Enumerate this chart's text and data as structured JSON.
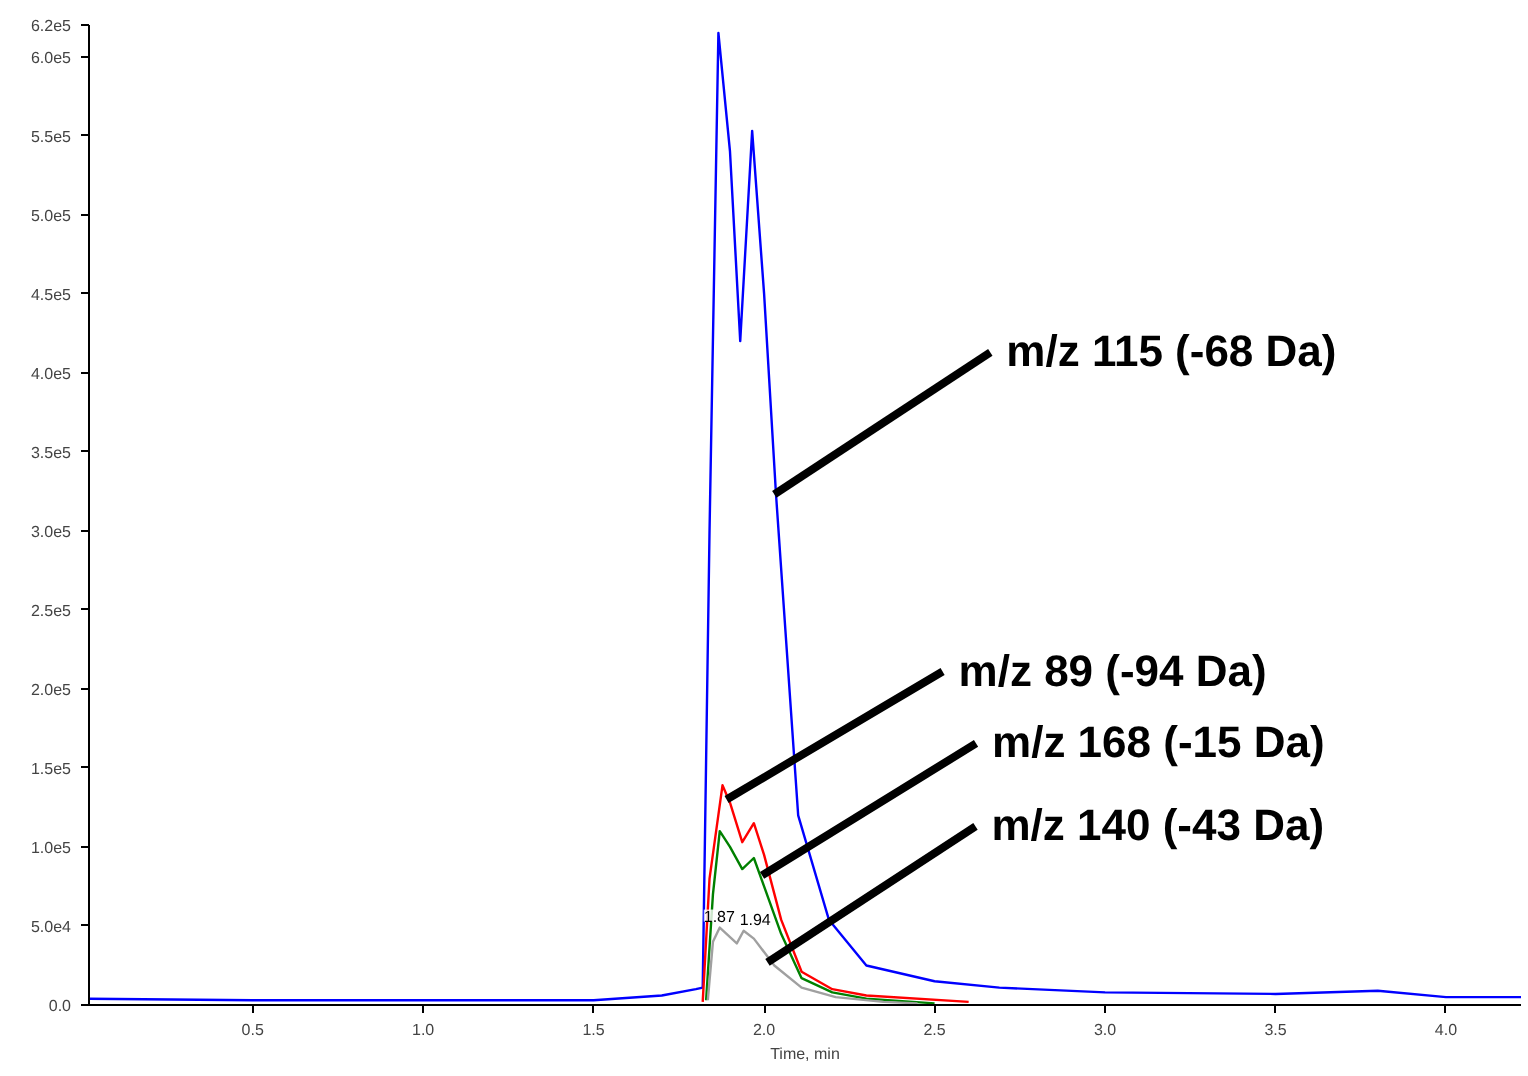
{
  "chart_data": {
    "type": "line",
    "xlabel": "Time, min",
    "xlim": [
      0.02,
      4.22
    ],
    "ylim": [
      0,
      620000
    ],
    "xticks": [
      {
        "value": 0.5,
        "label": "0.5"
      },
      {
        "value": 1.0,
        "label": "1.0"
      },
      {
        "value": 1.5,
        "label": "1.5"
      },
      {
        "value": 2.0,
        "label": "2.0"
      },
      {
        "value": 2.5,
        "label": "2.5"
      },
      {
        "value": 3.0,
        "label": "3.0"
      },
      {
        "value": 3.5,
        "label": "3.5"
      },
      {
        "value": 4.0,
        "label": "4.0"
      }
    ],
    "yticks": [
      {
        "value": 0,
        "label": "0.0"
      },
      {
        "value": 50000,
        "label": "5.0e4"
      },
      {
        "value": 100000,
        "label": "1.0e5"
      },
      {
        "value": 150000,
        "label": "1.5e5"
      },
      {
        "value": 200000,
        "label": "2.0e5"
      },
      {
        "value": 250000,
        "label": "2.5e5"
      },
      {
        "value": 300000,
        "label": "3.0e5"
      },
      {
        "value": 350000,
        "label": "3.5e5"
      },
      {
        "value": 400000,
        "label": "4.0e5"
      },
      {
        "value": 450000,
        "label": "4.5e5"
      },
      {
        "value": 500000,
        "label": "5.0e5"
      },
      {
        "value": 550000,
        "label": "5.5e5"
      },
      {
        "value": 600000,
        "label": "6.0e5"
      },
      {
        "value": 620000,
        "label": "6.2e5"
      }
    ],
    "grid": false,
    "marker": "none",
    "line_style": "solid",
    "series": [
      {
        "color": "#0000ff",
        "x": [
          0.02,
          0.5,
          1.0,
          1.5,
          1.7,
          1.8,
          1.82,
          1.84,
          1.866,
          1.9,
          1.93,
          1.965,
          2.0,
          2.035,
          2.1,
          2.19,
          2.3,
          2.5,
          2.69,
          3.0,
          3.5,
          3.8,
          4.0,
          4.22
        ],
        "values": [
          4000,
          3000,
          3000,
          3000,
          6000,
          10000,
          11000,
          300000,
          615000,
          540000,
          420000,
          553000,
          450000,
          323000,
          120000,
          54000,
          25000,
          15000,
          11000,
          8000,
          7000,
          9000,
          5000,
          5000
        ]
      },
      {
        "color": "#ff0000",
        "x": [
          1.82,
          1.84,
          1.878,
          1.9,
          1.936,
          1.97,
          2.0,
          2.05,
          2.11,
          2.2,
          2.3,
          2.6
        ],
        "values": [
          2000,
          80000,
          139000,
          128000,
          103000,
          115000,
          95000,
          54000,
          21000,
          10000,
          6000,
          2000
        ]
      },
      {
        "color": "#008000",
        "x": [
          1.83,
          1.85,
          1.87,
          1.9,
          1.936,
          1.97,
          2.0,
          2.05,
          2.11,
          2.2,
          2.3,
          2.5
        ],
        "values": [
          3000,
          70000,
          110000,
          100000,
          86000,
          93000,
          75000,
          45000,
          17000,
          8000,
          4000,
          1000
        ]
      },
      {
        "color": "#a0a0a0",
        "x": [
          1.835,
          1.85,
          1.87,
          1.92,
          1.94,
          1.97,
          2.03,
          2.11,
          2.21,
          2.35,
          2.45
        ],
        "values": [
          3000,
          40000,
          49000,
          39000,
          47000,
          42000,
          25000,
          11000,
          5000,
          2000,
          1000
        ]
      }
    ],
    "annotations": [
      {
        "text": "m/z 115 (-68 Da)",
        "x": 2.03,
        "y": 323000
      },
      {
        "text": "m/z 89 (-94 Da)",
        "x": 1.89,
        "y": 130000
      },
      {
        "text": "m/z 168 (-15 Da)",
        "x": 1.994,
        "y": 82000
      },
      {
        "text": "m/z 140 (-43 Da)",
        "x": 2.01,
        "y": 27000
      },
      {
        "text": "1.87",
        "x": 1.87,
        "y": 49000
      },
      {
        "text": "1.94",
        "x": 1.94,
        "y": 47000
      }
    ]
  }
}
